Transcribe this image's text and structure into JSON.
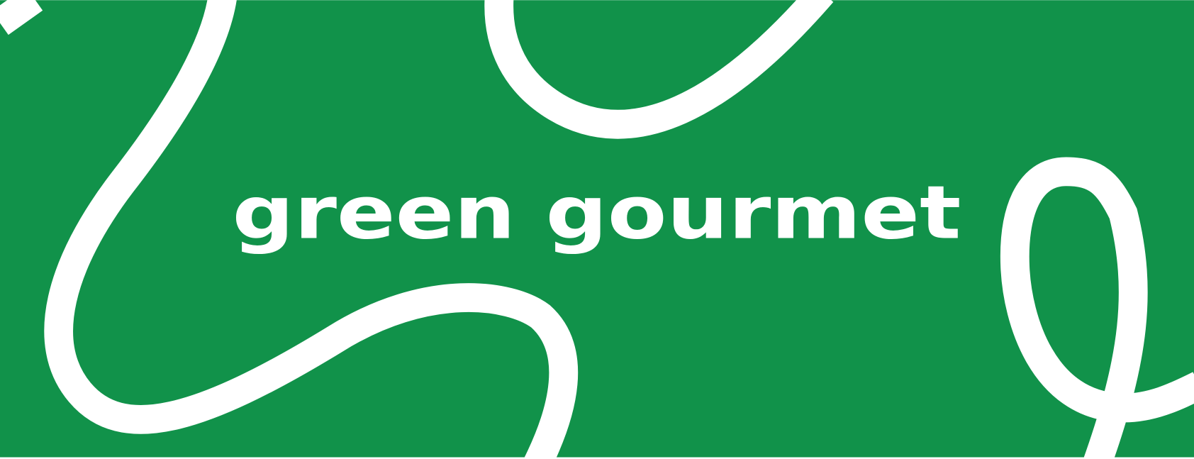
{
  "logo": {
    "text": "green gourmet"
  }
}
